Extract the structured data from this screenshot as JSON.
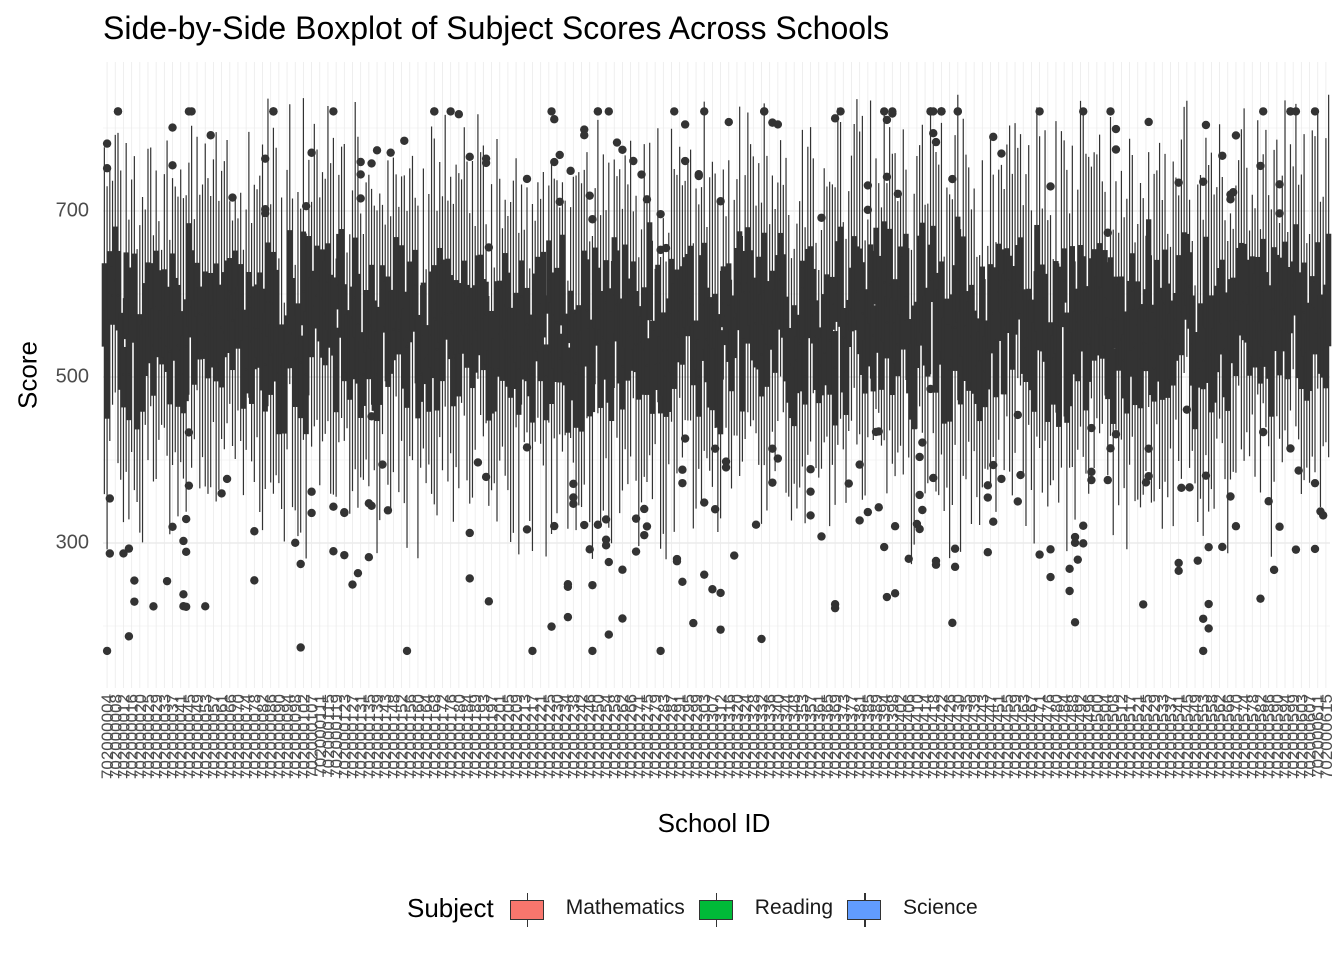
{
  "chart_data": {
    "type": "boxplot",
    "title": "Side-by-Side Boxplot of Subject Scores Across Schools",
    "xlabel": "School ID",
    "ylabel": "Score",
    "y_ticks": [
      "300",
      "500",
      "700"
    ],
    "ylim": [
      150,
      850
    ],
    "grid": true,
    "legend_position": "bottom",
    "legend_title": "Subject",
    "series": [
      {
        "name": "Mathematics",
        "color": "#F8766D"
      },
      {
        "name": "Reading",
        "color": "#00BA38"
      },
      {
        "name": "Science",
        "color": "#619CFF"
      }
    ],
    "category_count": 150,
    "category_first": "702000004",
    "category_last": "702000615",
    "box_median_range": [
      500,
      620
    ],
    "whisker_range": [
      195,
      840
    ],
    "outlier_range": [
      170,
      820
    ]
  }
}
